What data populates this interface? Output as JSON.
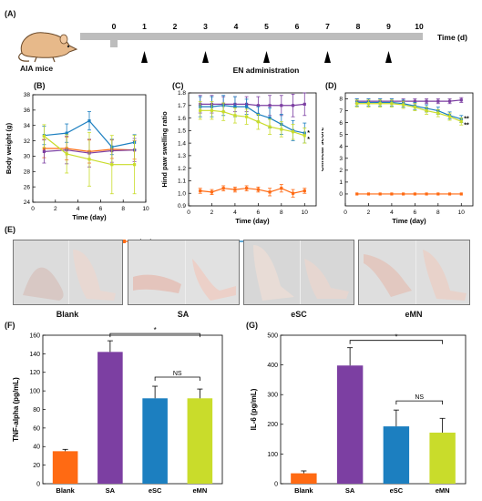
{
  "panel_A": {
    "label": "(A)",
    "ticks": [
      "0",
      "1",
      "2",
      "3",
      "4",
      "5",
      "6",
      "7",
      "8",
      "9",
      "10"
    ],
    "axis_label": "Time (d)",
    "mouse_label": "AIA mice",
    "administration_label": "EN administration",
    "administration_days": [
      1,
      3,
      5,
      7,
      9
    ]
  },
  "legend": {
    "items": [
      {
        "name": "Blank",
        "color": "#ff6a13"
      },
      {
        "name": "SA",
        "color": "#7c3fa2"
      },
      {
        "name": "eSC",
        "color": "#1c7fc0"
      },
      {
        "name": "eMN",
        "color": "#c9dc2b"
      }
    ]
  },
  "panel_E": {
    "label": "(E)",
    "captions": [
      "Blank",
      "SA",
      "eSC",
      "eMN"
    ]
  },
  "chart_data": [
    {
      "panel": "(B)",
      "type": "line",
      "xlabel": "Time (day)",
      "ylabel": "Body weight (g)",
      "xlim": [
        0,
        10
      ],
      "ylim": [
        24,
        38
      ],
      "xticks": [
        "0",
        "2",
        "4",
        "6",
        "8",
        "10"
      ],
      "yticks": [
        "24",
        "26",
        "28",
        "30",
        "32",
        "34",
        "36",
        "38"
      ],
      "x": [
        1,
        3,
        5,
        7,
        9
      ],
      "series": [
        {
          "name": "Blank",
          "values": [
            31.0,
            31.0,
            30.6,
            30.9,
            30.8
          ],
          "err": [
            1.2,
            1.5,
            1.5,
            1.2,
            1.2
          ]
        },
        {
          "name": "SA",
          "values": [
            30.6,
            30.8,
            30.4,
            30.7,
            30.8
          ],
          "err": [
            1.5,
            1.8,
            1.8,
            1.5,
            1.5
          ]
        },
        {
          "name": "eSC",
          "values": [
            32.7,
            33.0,
            34.6,
            31.2,
            31.8
          ],
          "err": [
            1.2,
            1.2,
            1.2,
            1.0,
            1.0
          ]
        },
        {
          "name": "eMN",
          "values": [
            32.6,
            30.3,
            29.6,
            28.9,
            28.9
          ],
          "err": [
            1.5,
            2.5,
            3.5,
            3.8,
            3.8
          ]
        }
      ]
    },
    {
      "panel": "(C)",
      "type": "line",
      "xlabel": "Time (day)",
      "ylabel": "Hind paw swelling ratio",
      "xlim": [
        0,
        11
      ],
      "ylim": [
        0.9,
        1.8
      ],
      "xticks": [
        "0",
        "2",
        "4",
        "6",
        "8",
        "10"
      ],
      "yticks": [
        "0.9",
        "1.0",
        "1.1",
        "1.2",
        "1.3",
        "1.4",
        "1.5",
        "1.6",
        "1.7",
        "1.8"
      ],
      "annotations": [
        "*",
        "*"
      ],
      "x": [
        1,
        2,
        3,
        4,
        5,
        6,
        7,
        8,
        9,
        10
      ],
      "series": [
        {
          "name": "Blank",
          "values": [
            1.02,
            1.01,
            1.04,
            1.03,
            1.04,
            1.03,
            1.01,
            1.04,
            1.0,
            1.02
          ],
          "err": [
            0.02,
            0.02,
            0.02,
            0.02,
            0.02,
            0.02,
            0.03,
            0.03,
            0.03,
            0.02
          ]
        },
        {
          "name": "SA",
          "values": [
            1.71,
            1.71,
            1.71,
            1.71,
            1.71,
            1.7,
            1.7,
            1.7,
            1.7,
            1.71
          ],
          "err": [
            0.07,
            0.07,
            0.06,
            0.06,
            0.06,
            0.07,
            0.08,
            0.08,
            0.09,
            0.09
          ]
        },
        {
          "name": "eSC",
          "values": [
            1.69,
            1.69,
            1.7,
            1.69,
            1.69,
            1.63,
            1.6,
            1.55,
            1.5,
            1.48
          ],
          "err": [
            0.08,
            0.08,
            0.08,
            0.08,
            0.06,
            0.06,
            0.08,
            0.08,
            0.08,
            0.08
          ]
        },
        {
          "name": "eMN",
          "values": [
            1.66,
            1.66,
            1.65,
            1.62,
            1.61,
            1.57,
            1.53,
            1.51,
            1.49,
            1.46
          ],
          "err": [
            0.07,
            0.07,
            0.07,
            0.06,
            0.06,
            0.06,
            0.06,
            0.06,
            0.06,
            0.06
          ]
        }
      ]
    },
    {
      "panel": "(D)",
      "type": "line",
      "xlabel": "Time (day)",
      "ylabel": "Clinical score",
      "xlim": [
        0,
        11
      ],
      "ylim": [
        -1,
        8.5
      ],
      "xticks": [
        "0",
        "2",
        "4",
        "6",
        "8",
        "10"
      ],
      "yticks": [
        "0",
        "1",
        "2",
        "3",
        "4",
        "5",
        "6",
        "7",
        "8"
      ],
      "annotations": [
        "**",
        "**"
      ],
      "x": [
        1,
        2,
        3,
        4,
        5,
        6,
        7,
        8,
        9,
        10
      ],
      "series": [
        {
          "name": "Blank",
          "values": [
            0,
            0,
            0,
            0,
            0,
            0,
            0,
            0,
            0,
            0
          ],
          "err": [
            0,
            0,
            0,
            0,
            0,
            0,
            0,
            0,
            0,
            0
          ]
        },
        {
          "name": "SA",
          "values": [
            7.8,
            7.8,
            7.8,
            7.8,
            7.8,
            7.8,
            7.8,
            7.8,
            7.8,
            7.9
          ],
          "err": [
            0.2,
            0.2,
            0.2,
            0.2,
            0.2,
            0.2,
            0.2,
            0.2,
            0.2,
            0.2
          ]
        },
        {
          "name": "eSC",
          "values": [
            7.7,
            7.7,
            7.7,
            7.7,
            7.6,
            7.4,
            7.2,
            7.0,
            6.6,
            6.3
          ],
          "err": [
            0.3,
            0.3,
            0.3,
            0.3,
            0.3,
            0.3,
            0.3,
            0.3,
            0.3,
            0.3
          ]
        },
        {
          "name": "eMN",
          "values": [
            7.6,
            7.6,
            7.6,
            7.6,
            7.5,
            7.3,
            7.0,
            6.8,
            6.5,
            6.1
          ],
          "err": [
            0.3,
            0.3,
            0.3,
            0.3,
            0.3,
            0.3,
            0.3,
            0.3,
            0.3,
            0.3
          ]
        }
      ]
    },
    {
      "panel": "(F)",
      "type": "bar",
      "ylabel": "TNF-alpha (pg/mL)",
      "ylim": [
        0,
        160
      ],
      "yticks": [
        "0",
        "20",
        "40",
        "60",
        "80",
        "100",
        "120",
        "140",
        "160"
      ],
      "categories": [
        "Blank",
        "SA",
        "eSC",
        "eMN"
      ],
      "values": [
        35,
        142,
        92,
        92
      ],
      "err": [
        2,
        12,
        13,
        10
      ],
      "colors": [
        "#ff6a13",
        "#7c3fa2",
        "#1c7fc0",
        "#c9dc2b"
      ],
      "sig_labels": [
        "*",
        "NS"
      ]
    },
    {
      "panel": "(G)",
      "type": "bar",
      "ylabel": "IL-6 (pg/mL)",
      "ylim": [
        0,
        500
      ],
      "yticks": [
        "0",
        "100",
        "200",
        "300",
        "400",
        "500"
      ],
      "categories": [
        "Blank",
        "SA",
        "eSC",
        "eMN"
      ],
      "values": [
        35,
        398,
        193,
        172
      ],
      "err": [
        8,
        60,
        55,
        48
      ],
      "colors": [
        "#ff6a13",
        "#7c3fa2",
        "#1c7fc0",
        "#c9dc2b"
      ],
      "sig_labels": [
        "*",
        "NS"
      ]
    }
  ]
}
